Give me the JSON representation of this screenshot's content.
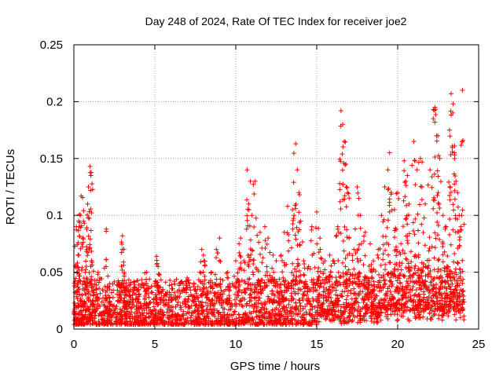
{
  "chart_data": {
    "type": "scatter",
    "title": "Day 248 of 2024, Rate Of TEC Index for receiver joe2",
    "xlabel": "GPS time / hours",
    "ylabel": "ROTI / TECUs",
    "xlim": [
      0,
      25
    ],
    "ylim": [
      0,
      0.25
    ],
    "grid": true,
    "marker": "+",
    "color": "#ff0000",
    "xticks": [
      0,
      5,
      10,
      15,
      20,
      25
    ],
    "xtick_labels": [
      "0",
      "5",
      "10",
      "15",
      "20",
      "25"
    ],
    "yticks": [
      0,
      0.05,
      0.1,
      0.15,
      0.2,
      0.25
    ],
    "ytick_labels": [
      "0",
      "0.05",
      "0.1",
      "0.15",
      "0.2",
      "0.25"
    ],
    "series": [
      {
        "name": "ROTI",
        "points": [
          [
            0.1,
            0.01
          ],
          [
            0.1,
            0.02
          ],
          [
            0.15,
            0.09
          ],
          [
            0.2,
            0.05
          ],
          [
            0.3,
            0.065
          ],
          [
            0.3,
            0.095
          ],
          [
            0.4,
            0.1
          ],
          [
            0.45,
            0.117
          ],
          [
            0.5,
            0.03
          ],
          [
            0.6,
            0.104
          ],
          [
            0.7,
            0.05
          ],
          [
            0.8,
            0.07
          ],
          [
            0.85,
            0.11
          ],
          [
            0.9,
            0.125
          ],
          [
            1.0,
            0.143
          ],
          [
            1.05,
            0.135
          ],
          [
            1.1,
            0.06
          ],
          [
            1.2,
            0.03
          ],
          [
            1.5,
            0.05
          ],
          [
            1.6,
            0.045
          ],
          [
            2.0,
            0.088
          ],
          [
            2.2,
            0.02
          ],
          [
            2.8,
            0.04
          ],
          [
            3.0,
            0.082
          ],
          [
            3.0,
            0.07
          ],
          [
            3.2,
            0.03
          ],
          [
            3.5,
            0.035
          ],
          [
            4.0,
            0.03
          ],
          [
            4.5,
            0.04
          ],
          [
            4.5,
            0.05
          ],
          [
            5.0,
            0.04
          ],
          [
            5.1,
            0.064
          ],
          [
            5.2,
            0.055
          ],
          [
            5.5,
            0.035
          ],
          [
            6.0,
            0.03
          ],
          [
            6.5,
            0.04
          ],
          [
            7.0,
            0.045
          ],
          [
            7.5,
            0.035
          ],
          [
            7.8,
            0.05
          ],
          [
            7.9,
            0.07
          ],
          [
            8.0,
            0.065
          ],
          [
            8.5,
            0.05
          ],
          [
            8.8,
            0.07
          ],
          [
            9.0,
            0.08
          ],
          [
            9.5,
            0.05
          ],
          [
            10.0,
            0.06
          ],
          [
            10.2,
            0.075
          ],
          [
            10.3,
            0.08
          ],
          [
            10.5,
            0.06
          ],
          [
            10.7,
            0.14
          ],
          [
            10.8,
            0.11
          ],
          [
            10.9,
            0.13
          ],
          [
            11.0,
            0.1
          ],
          [
            11.2,
            0.13
          ],
          [
            11.5,
            0.085
          ],
          [
            11.8,
            0.09
          ],
          [
            12.0,
            0.08
          ],
          [
            12.3,
            0.065
          ],
          [
            12.5,
            0.06
          ],
          [
            12.8,
            0.065
          ],
          [
            13.0,
            0.085
          ],
          [
            13.2,
            0.108
          ],
          [
            13.5,
            0.105
          ],
          [
            13.6,
            0.1
          ],
          [
            13.7,
            0.163
          ],
          [
            13.8,
            0.14
          ],
          [
            13.9,
            0.12
          ],
          [
            14.0,
            0.095
          ],
          [
            14.2,
            0.06
          ],
          [
            14.5,
            0.055
          ],
          [
            14.7,
            0.09
          ],
          [
            15.0,
            0.103
          ],
          [
            15.2,
            0.08
          ],
          [
            15.5,
            0.06
          ],
          [
            15.8,
            0.065
          ],
          [
            16.0,
            0.06
          ],
          [
            16.3,
            0.09
          ],
          [
            16.5,
            0.192
          ],
          [
            16.6,
            0.18
          ],
          [
            16.7,
            0.165
          ],
          [
            16.8,
            0.145
          ],
          [
            16.9,
            0.12
          ],
          [
            17.0,
            0.08
          ],
          [
            17.3,
            0.07
          ],
          [
            17.5,
            0.125
          ],
          [
            17.6,
            0.115
          ],
          [
            17.7,
            0.1
          ],
          [
            18.0,
            0.085
          ],
          [
            18.3,
            0.075
          ],
          [
            18.5,
            0.06
          ],
          [
            18.8,
            0.07
          ],
          [
            19.0,
            0.1
          ],
          [
            19.2,
            0.125
          ],
          [
            19.4,
            0.14
          ],
          [
            19.5,
            0.155
          ],
          [
            19.6,
            0.12
          ],
          [
            19.8,
            0.105
          ],
          [
            20.0,
            0.12
          ],
          [
            20.2,
            0.075
          ],
          [
            20.4,
            0.148
          ],
          [
            20.5,
            0.13
          ],
          [
            20.6,
            0.135
          ],
          [
            20.7,
            0.11
          ],
          [
            21.0,
            0.165
          ],
          [
            21.2,
            0.14
          ],
          [
            21.4,
            0.15
          ],
          [
            21.5,
            0.125
          ],
          [
            21.7,
            0.11
          ],
          [
            22.0,
            0.14
          ],
          [
            22.2,
            0.185
          ],
          [
            22.3,
            0.195
          ],
          [
            22.4,
            0.17
          ],
          [
            22.5,
            0.12
          ],
          [
            22.6,
            0.15
          ],
          [
            22.8,
            0.1
          ],
          [
            23.0,
            0.09
          ],
          [
            23.2,
            0.175
          ],
          [
            23.3,
            0.207
          ],
          [
            23.4,
            0.19
          ],
          [
            23.5,
            0.155
          ],
          [
            23.6,
            0.13
          ],
          [
            23.7,
            0.12
          ],
          [
            23.8,
            0.1
          ],
          [
            23.9,
            0.09
          ],
          [
            24.0,
            0.21
          ]
        ],
        "baseline_density": "dense markers between 0.0 and about 0.04 across 0 to 24 hours"
      }
    ]
  }
}
